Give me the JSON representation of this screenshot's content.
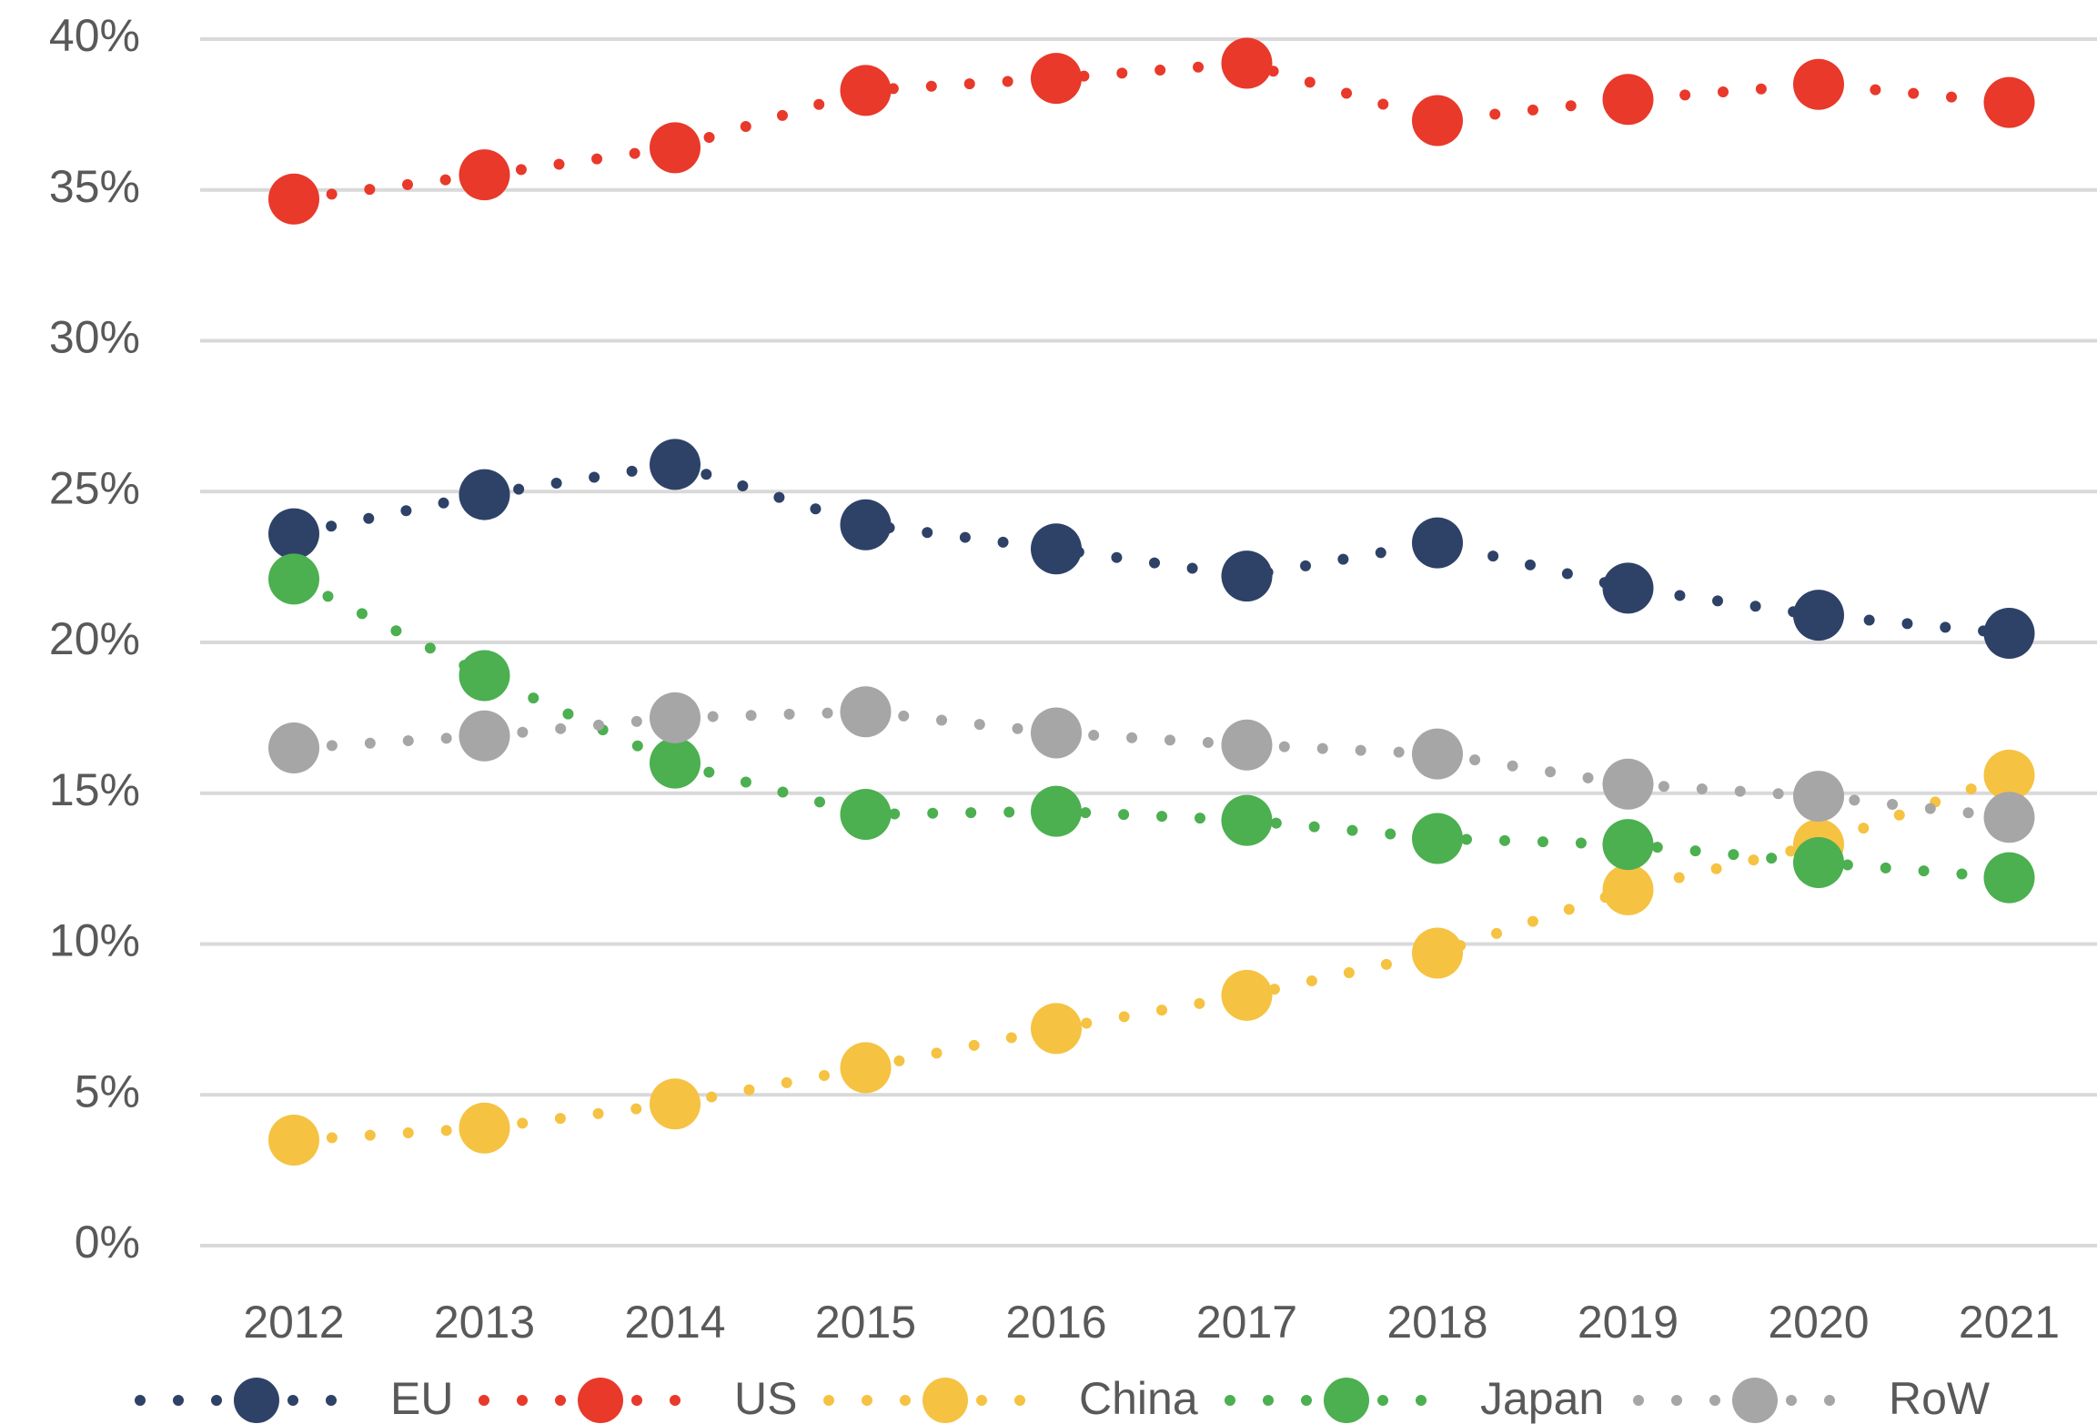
{
  "chart_data": {
    "type": "line",
    "categories": [
      "2012",
      "2013",
      "2014",
      "2015",
      "2016",
      "2017",
      "2018",
      "2019",
      "2020",
      "2021"
    ],
    "series": [
      {
        "name": "EU",
        "color": "#2e4268",
        "values": [
          23.6,
          24.9,
          25.9,
          23.9,
          23.1,
          22.2,
          23.3,
          21.8,
          20.9,
          20.3
        ]
      },
      {
        "name": "US",
        "color": "#e8392a",
        "values": [
          34.7,
          35.5,
          36.4,
          38.3,
          38.7,
          39.2,
          37.3,
          38.0,
          38.5,
          37.9
        ]
      },
      {
        "name": "China",
        "color": "#f5c242",
        "values": [
          3.5,
          3.9,
          4.7,
          5.9,
          7.2,
          8.3,
          9.7,
          11.8,
          13.3,
          15.6
        ]
      },
      {
        "name": "Japan",
        "color": "#4caf50",
        "values": [
          22.1,
          18.9,
          16.0,
          14.3,
          14.4,
          14.1,
          13.5,
          13.3,
          12.7,
          12.2
        ]
      },
      {
        "name": "RoW",
        "color": "#a6a6a6",
        "values": [
          16.5,
          16.9,
          17.5,
          17.7,
          17.0,
          16.6,
          16.3,
          15.3,
          14.9,
          14.2
        ]
      }
    ],
    "ylim": [
      0,
      40
    ],
    "yticks": [
      {
        "value": 0,
        "label": "0%"
      },
      {
        "value": 5,
        "label": "5%"
      },
      {
        "value": 10,
        "label": "10%"
      },
      {
        "value": 15,
        "label": "15%"
      },
      {
        "value": 20,
        "label": "20%"
      },
      {
        "value": 25,
        "label": "25%"
      },
      {
        "value": 30,
        "label": "30%"
      },
      {
        "value": 35,
        "label": "35%"
      },
      {
        "value": 40,
        "label": "40%"
      }
    ],
    "grid": true,
    "legend": "bottom"
  }
}
